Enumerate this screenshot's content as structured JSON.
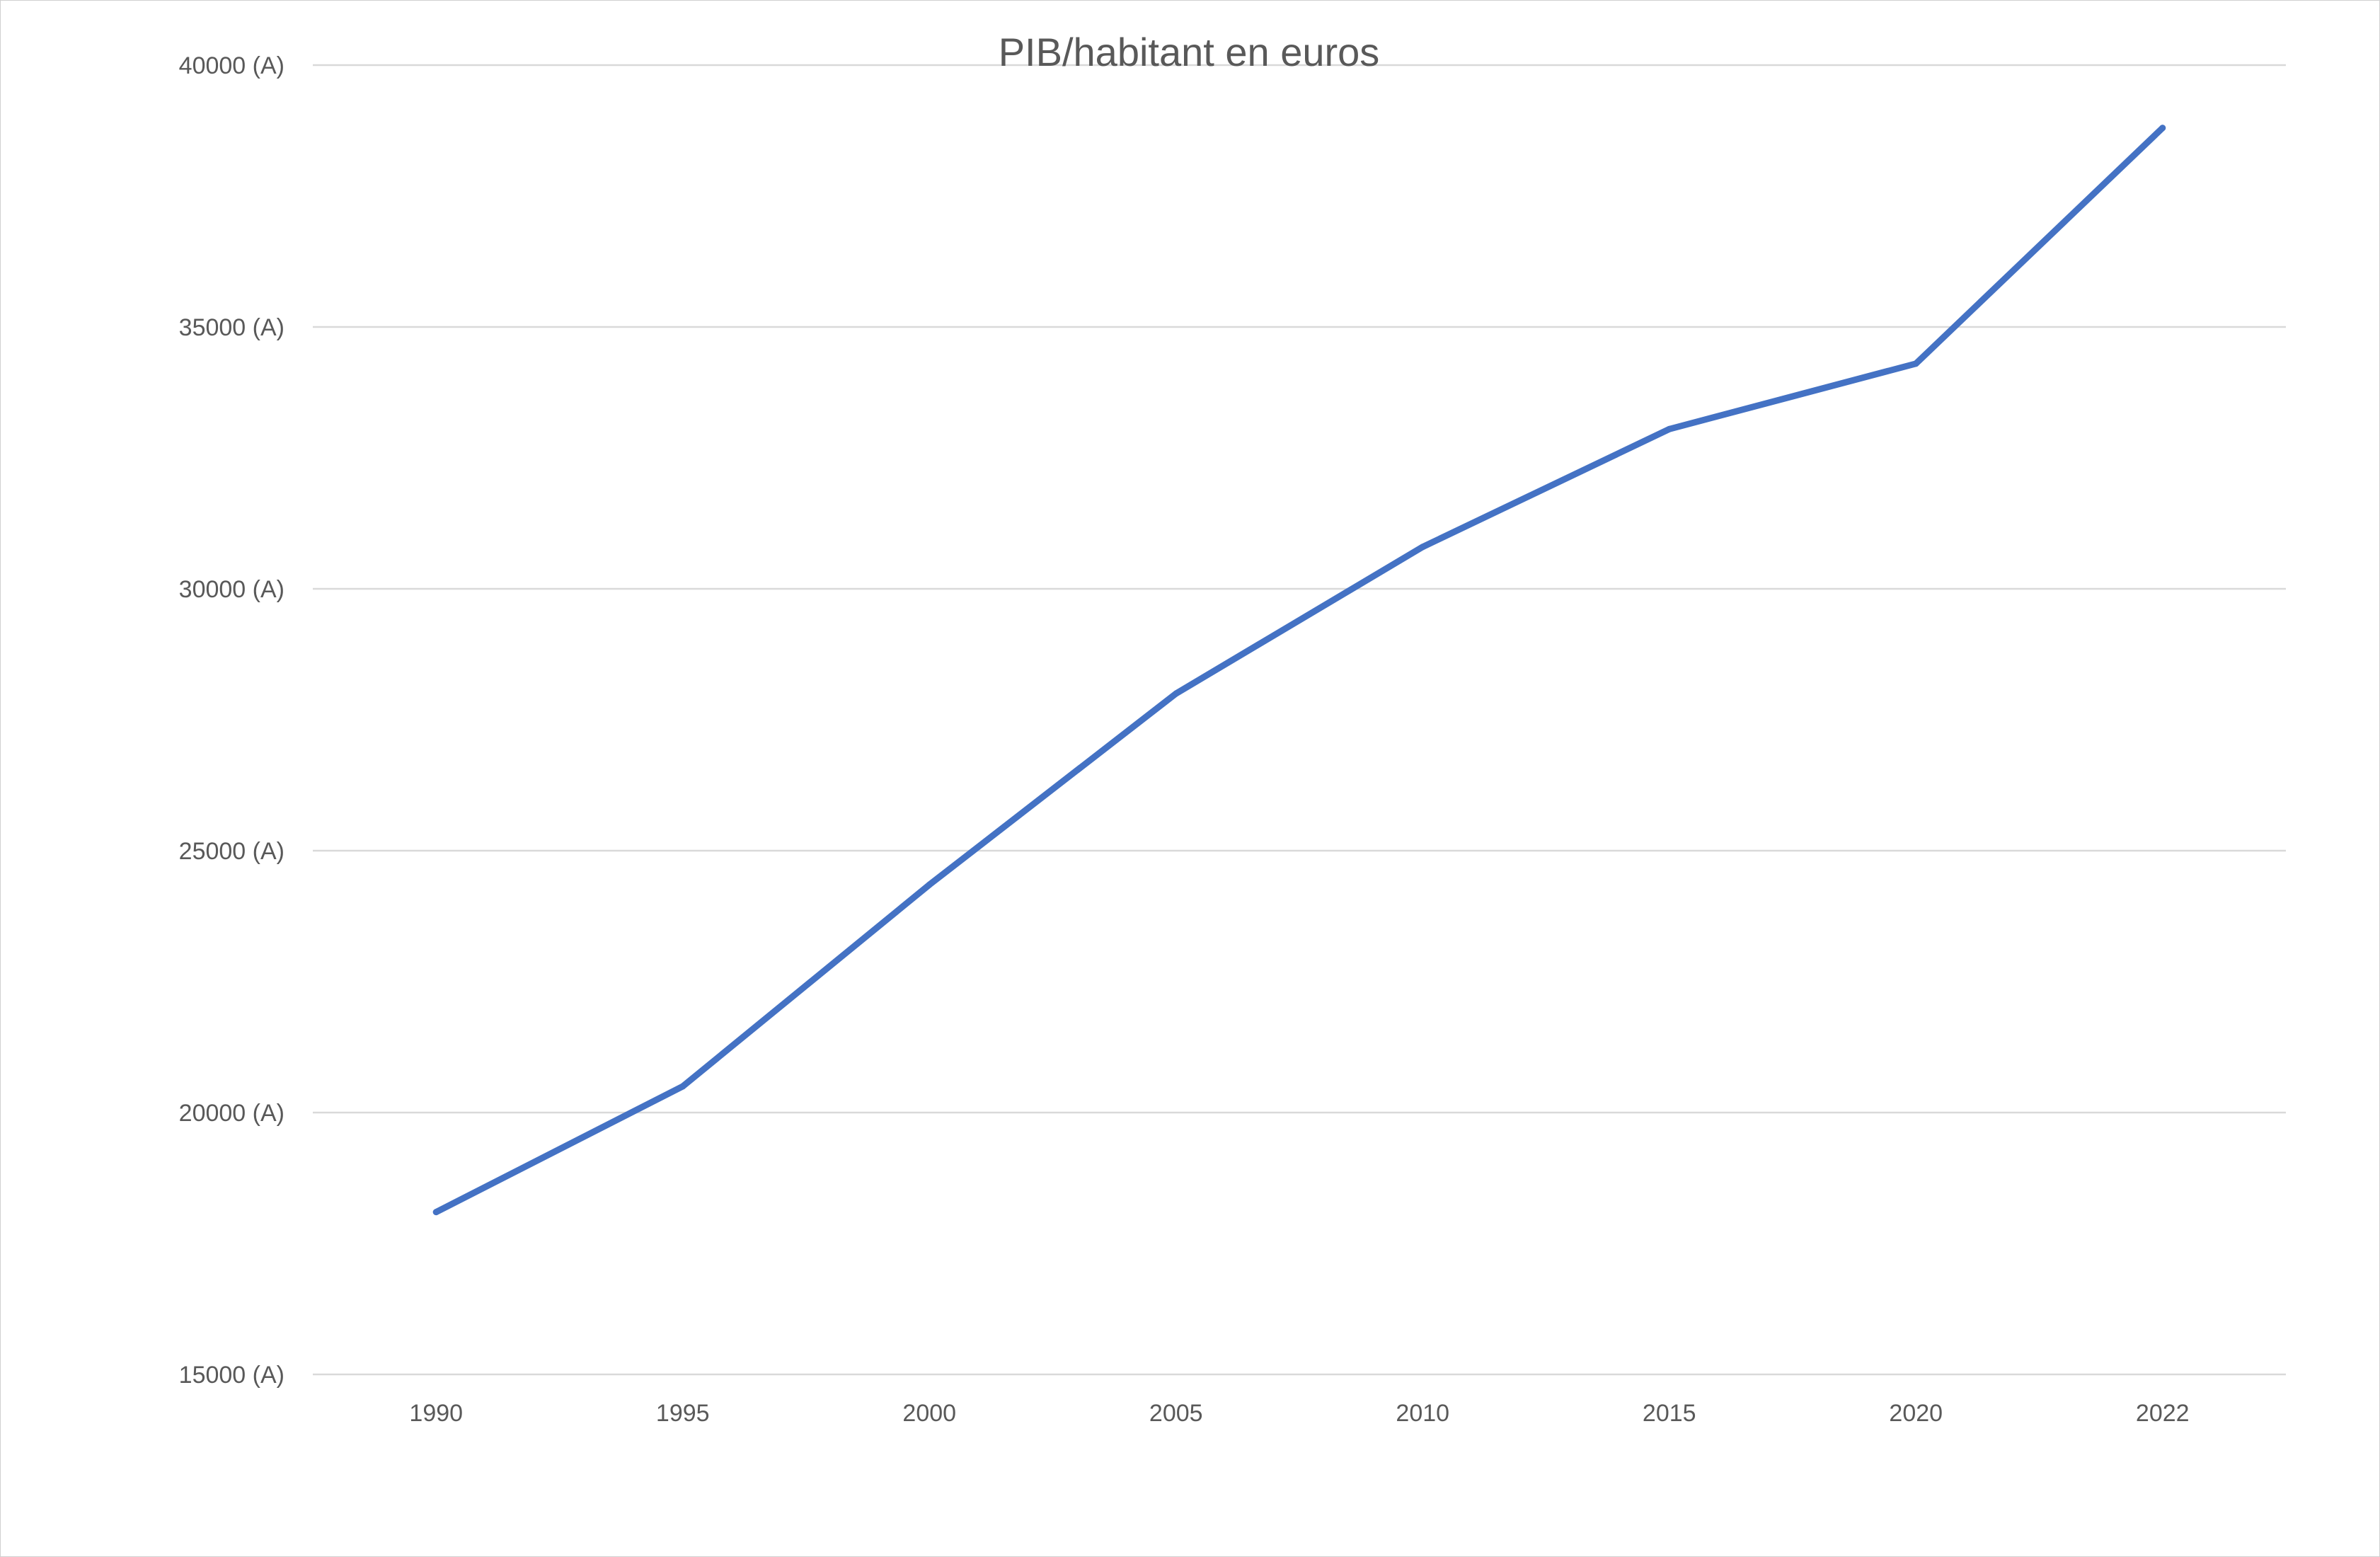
{
  "chart_data": {
    "type": "line",
    "title": "PIB/habitant en euros",
    "xlabel": "",
    "ylabel": "",
    "categories": [
      "1990",
      "1995",
      "2000",
      "2005",
      "2010",
      "2015",
      "2020",
      "2022"
    ],
    "series": [
      {
        "values": [
          18100,
          20500,
          24350,
          28000,
          30800,
          33050,
          34300,
          38800
        ],
        "color": "#4472C4"
      }
    ],
    "ylim": [
      15000,
      40000
    ],
    "y_ticks": [
      40000,
      35000,
      30000,
      25000,
      20000,
      15000
    ],
    "y_tick_labels": [
      "40000 (A)",
      "35000 (A)",
      "30000 (A)",
      "25000 (A)",
      "20000 (A)",
      "15000 (A)"
    ],
    "grid": "horizontal",
    "legend": "none"
  }
}
